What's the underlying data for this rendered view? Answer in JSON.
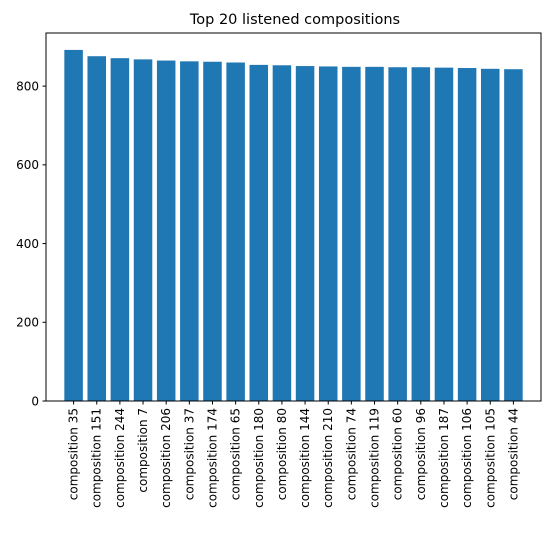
{
  "chart_data": {
    "type": "bar",
    "title": "Top 20 listened compositions",
    "xlabel": "",
    "ylabel": "",
    "categories": [
      "composition 35",
      "composition 151",
      "composition 244",
      "composition 7",
      "composition 206",
      "composition 37",
      "composition 174",
      "composition 65",
      "composition 180",
      "composition 80",
      "composition 144",
      "composition 210",
      "composition 74",
      "composition 119",
      "composition 60",
      "composition 96",
      "composition 187",
      "composition 106",
      "composition 105",
      "composition 44"
    ],
    "values": [
      892,
      876,
      871,
      868,
      865,
      863,
      862,
      860,
      854,
      853,
      851,
      850,
      849,
      849,
      848,
      848,
      847,
      846,
      844,
      843
    ],
    "ylim": [
      0,
      935
    ],
    "yticks": [
      "0",
      "200",
      "400",
      "600",
      "800"
    ],
    "bar_color": "#1f77b4",
    "grid": false,
    "legend": "none"
  }
}
